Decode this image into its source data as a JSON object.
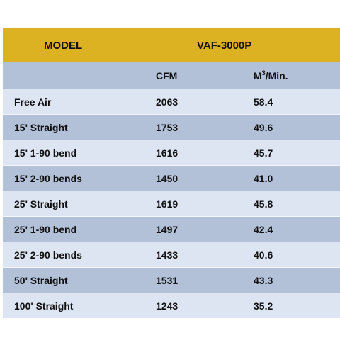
{
  "table": {
    "model_header": "MODEL",
    "model_name": "VAF-3000P",
    "unit_cfm": "CFM",
    "unit_m3_base": "M",
    "unit_m3_sup": "3",
    "unit_m3_tail": "/Min.",
    "rows": [
      {
        "label": "Free Air",
        "cfm": "2063",
        "m3": "58.4"
      },
      {
        "label": "15' Straight",
        "cfm": "1753",
        "m3": "49.6"
      },
      {
        "label": "15' 1-90 bend",
        "cfm": "1616",
        "m3": "45.7"
      },
      {
        "label": "15' 2-90 bends",
        "cfm": "1450",
        "m3": "41.0"
      },
      {
        "label": "25' Straight",
        "cfm": "1619",
        "m3": "45.8"
      },
      {
        "label": "25' 1-90 bend",
        "cfm": "1497",
        "m3": "42.4"
      },
      {
        "label": "25' 2-90 bends",
        "cfm": "1433",
        "m3": "40.6"
      },
      {
        "label": "50' Straight",
        "cfm": "1531",
        "m3": "43.3"
      },
      {
        "label": "100' Straight",
        "cfm": "1243",
        "m3": "35.2"
      }
    ]
  },
  "colors": {
    "header": "#dcb122",
    "row_dark": "#b2c0d8",
    "row_light": "#dde4f2"
  }
}
